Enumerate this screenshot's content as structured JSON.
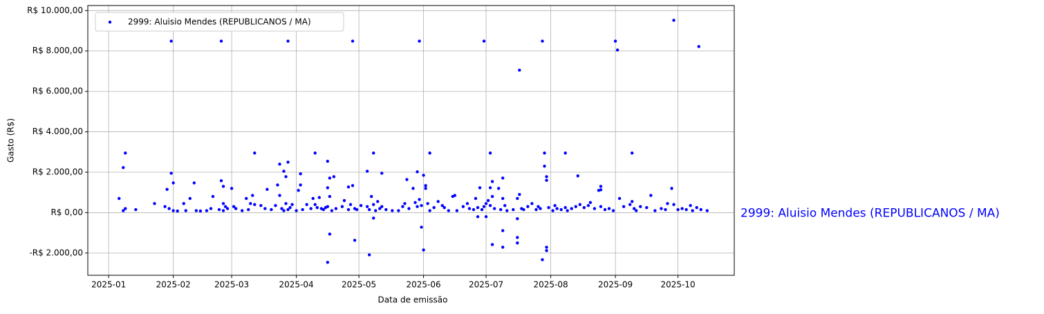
{
  "chart_data": {
    "type": "scatter",
    "xlabel": "Data de emissão",
    "ylabel": "Gasto (R$)",
    "annotation": "2999: Aluisio Mendes (REPUBLICANOS / MA)",
    "annotation_color": "#0000ff",
    "grid": true,
    "legend": "upper left",
    "xlim": [
      -10,
      300
    ],
    "xticks": [
      {
        "value": 0,
        "label": "2025-01"
      },
      {
        "value": 31,
        "label": "2025-02"
      },
      {
        "value": 59,
        "label": "2025-03"
      },
      {
        "value": 90,
        "label": "2025-04"
      },
      {
        "value": 120,
        "label": "2025-05"
      },
      {
        "value": 151,
        "label": "2025-06"
      },
      {
        "value": 181,
        "label": "2025-07"
      },
      {
        "value": 212,
        "label": "2025-08"
      },
      {
        "value": 243,
        "label": "2025-09"
      },
      {
        "value": 273,
        "label": "2025-10"
      }
    ],
    "ylim": [
      -3100,
      10250
    ],
    "yticks": [
      {
        "value": -2000,
        "label": "-R$ 2.000,00"
      },
      {
        "value": 0,
        "label": "R$ 0,00"
      },
      {
        "value": 2000,
        "label": "R$ 2.000,00"
      },
      {
        "value": 4000,
        "label": "R$ 4.000,00"
      },
      {
        "value": 6000,
        "label": "R$ 6.000,00"
      },
      {
        "value": 8000,
        "label": "R$ 8.000,00"
      },
      {
        "value": 10000,
        "label": "R$ 10.000,00"
      }
    ],
    "series": [
      {
        "name": "2999: Aluisio Mendes (REPUBLICANOS / MA)",
        "color": "#0000ff",
        "x": [
          30,
          54,
          86,
          117,
          149,
          180,
          208,
          243,
          244,
          271,
          283,
          197,
          8,
          70,
          99,
          127,
          154,
          183,
          209,
          219,
          251,
          7,
          30,
          31,
          86,
          82,
          105,
          148,
          124,
          131,
          209,
          210,
          210,
          151,
          84,
          85,
          92,
          54,
          41,
          55,
          81,
          92,
          108,
          106,
          105,
          189,
          184,
          143,
          117,
          115,
          225,
          236,
          236,
          270,
          178,
          183,
          152,
          146,
          105,
          106,
          118,
          125,
          127,
          150,
          151,
          177,
          181,
          184,
          189,
          189,
          196,
          196,
          196,
          208,
          210,
          210,
          5,
          7,
          8,
          13,
          22,
          27,
          28,
          29,
          31,
          33,
          36,
          37,
          39,
          42,
          44,
          47,
          49,
          50,
          53,
          55,
          55,
          56,
          57,
          59,
          60,
          61,
          64,
          66,
          67,
          68,
          69,
          70,
          73,
          75,
          76,
          78,
          80,
          82,
          83,
          84,
          85,
          86,
          87,
          88,
          90,
          91,
          93,
          95,
          97,
          98,
          99,
          100,
          101,
          102,
          103,
          104,
          105,
          106,
          107,
          109,
          112,
          113,
          115,
          116,
          118,
          119,
          121,
          124,
          125,
          126,
          127,
          128,
          129,
          130,
          131,
          133,
          136,
          139,
          141,
          142,
          144,
          147,
          148,
          149,
          150,
          152,
          153,
          154,
          156,
          158,
          160,
          161,
          163,
          165,
          166,
          167,
          170,
          172,
          173,
          175,
          176,
          177,
          179,
          180,
          181,
          182,
          183,
          184,
          185,
          187,
          188,
          189,
          190,
          191,
          194,
          196,
          197,
          198,
          199,
          201,
          203,
          205,
          206,
          207,
          211,
          213,
          214,
          215,
          217,
          219,
          220,
          222,
          224,
          226,
          228,
          230,
          231,
          233,
          235,
          236,
          238,
          240,
          242,
          245,
          247,
          250,
          251,
          252,
          253,
          255,
          258,
          260,
          262,
          265,
          267,
          268,
          271,
          273,
          275,
          277,
          279,
          280,
          282,
          284,
          287
        ],
        "values": [
          8490,
          8490,
          8490,
          8490,
          8490,
          8490,
          8490,
          8490,
          8050,
          9520,
          8220,
          7050,
          2950,
          2950,
          2950,
          2950,
          2950,
          2950,
          2950,
          2950,
          2950,
          2230,
          1950,
          1470,
          2500,
          2400,
          2540,
          2020,
          2050,
          1950,
          2300,
          1780,
          1600,
          1850,
          2050,
          1780,
          1920,
          1580,
          1470,
          1300,
          1370,
          1370,
          1780,
          1710,
          1230,
          1710,
          1540,
          1640,
          1340,
          1270,
          1820,
          1300,
          1130,
          1200,
          1230,
          1230,
          1340,
          1200,
          -2460,
          -1060,
          -1370,
          -2090,
          -270,
          -720,
          -1850,
          -200,
          -200,
          -1580,
          -890,
          -1710,
          -1230,
          -1500,
          -300,
          -2330,
          -1710,
          -1880,
          700,
          100,
          200,
          150,
          450,
          300,
          1150,
          200,
          100,
          80,
          450,
          100,
          700,
          100,
          80,
          100,
          200,
          800,
          150,
          450,
          100,
          300,
          200,
          1200,
          300,
          200,
          100,
          700,
          150,
          450,
          850,
          400,
          350,
          200,
          1150,
          150,
          350,
          850,
          200,
          100,
          450,
          150,
          250,
          400,
          100,
          1100,
          150,
          400,
          200,
          700,
          400,
          250,
          750,
          200,
          150,
          250,
          300,
          800,
          100,
          200,
          300,
          600,
          150,
          400,
          200,
          150,
          350,
          300,
          150,
          800,
          400,
          100,
          550,
          200,
          300,
          150,
          100,
          100,
          300,
          450,
          200,
          500,
          300,
          650,
          350,
          1200,
          450,
          100,
          250,
          550,
          350,
          250,
          100,
          800,
          850,
          100,
          300,
          450,
          200,
          150,
          700,
          250,
          150,
          300,
          450,
          600,
          350,
          800,
          200,
          1200,
          150,
          700,
          350,
          100,
          150,
          700,
          900,
          200,
          150,
          300,
          450,
          150,
          300,
          200,
          250,
          100,
          350,
          200,
          150,
          250,
          100,
          200,
          300,
          400,
          250,
          350,
          500,
          200,
          1100,
          300,
          150,
          200,
          100,
          700,
          300,
          400,
          550,
          200,
          100,
          300,
          250,
          850,
          100,
          200,
          150,
          450,
          400,
          150,
          200,
          150,
          350,
          100,
          250,
          150,
          100
        ]
      }
    ]
  }
}
